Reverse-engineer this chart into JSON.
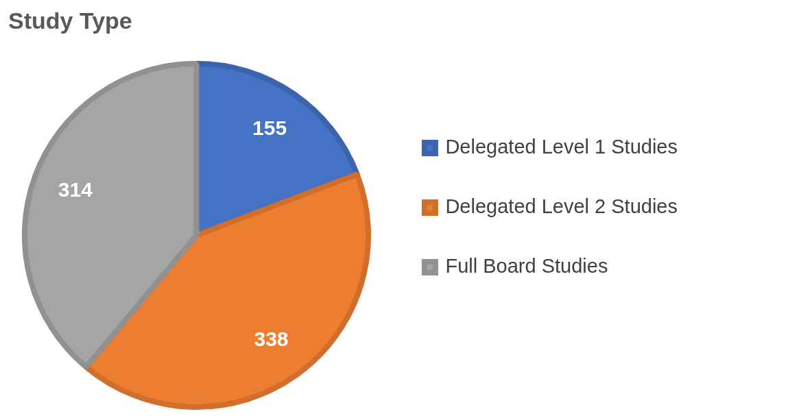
{
  "chart_data": {
    "type": "pie",
    "title": "Study Type",
    "categories": [
      "Delegated Level 1 Studies",
      "Delegated Level 2 Studies",
      "Full Board Studies"
    ],
    "values": [
      155,
      338,
      314
    ],
    "colors": [
      "#4472c4",
      "#ed7d31",
      "#a5a5a5"
    ],
    "data_labels": true,
    "legend": "right"
  }
}
